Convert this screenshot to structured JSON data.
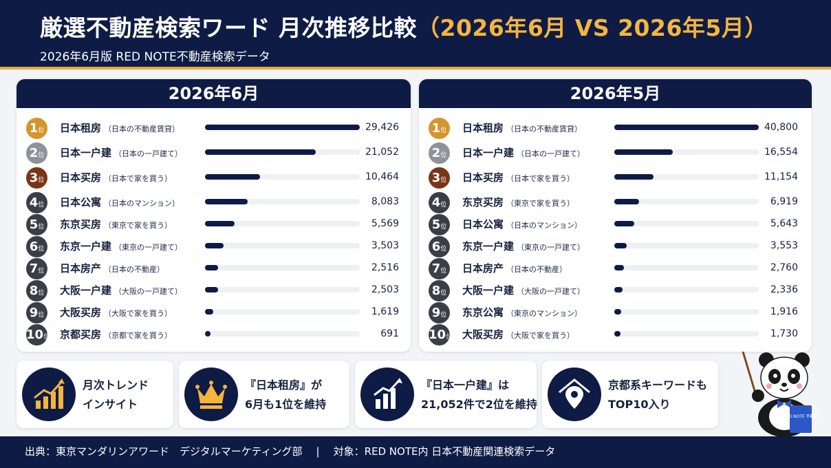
{
  "header": {
    "title_main": "厳選不動産検索ワード 月次推移比較",
    "title_accent": "（2026年6月 VS 2026年5月）",
    "subtitle": "2026年6月版 RED NOTE不動産検索データ"
  },
  "rank_suffix": "位",
  "colors": {
    "navy": "#0e1b45",
    "gold": "#d5952c",
    "silver": "#8f9299",
    "bronze": "#7a3518",
    "gray": "#3a3f47",
    "accent": "#f4b53f"
  },
  "chart_data": [
    {
      "type": "bar",
      "title": "2026年6月",
      "categories": [
        "日本租房",
        "日本一户建",
        "日本买房",
        "日本公寓",
        "东京买房",
        "东京一户建",
        "日本房产",
        "大阪一户建",
        "大阪买房",
        "京都买房"
      ],
      "notes": [
        "（日本の不動産賃貸）",
        "（日本の一戸建て）",
        "（日本で家を買う）",
        "（日本のマンション）",
        "（東京で家を買う）",
        "（東京の一戸建て）",
        "（日本の不動産）",
        "（大阪の一戸建て）",
        "（大阪で家を買う）",
        "（京都で家を買う）"
      ],
      "ranks": [
        "1",
        "2",
        "3",
        "4",
        "5",
        "6",
        "7",
        "8",
        "9",
        "10"
      ],
      "values": [
        29426,
        21052,
        10464,
        8083,
        5569,
        3503,
        2516,
        2503,
        1619,
        691
      ],
      "value_labels": [
        "29,426",
        "21,052",
        "10,464",
        "8,083",
        "5,569",
        "3,503",
        "2,516",
        "2,503",
        "1,619",
        "691"
      ]
    },
    {
      "type": "bar",
      "title": "2026年5月",
      "categories": [
        "日本租房",
        "日本一户建",
        "日本买房",
        "东京买房",
        "日本公寓",
        "东京一户建",
        "日本房产",
        "大阪一户建",
        "东京公寓",
        "大阪买房"
      ],
      "notes": [
        "（日本の不動産賃貸）",
        "（日本の一戸建て）",
        "（日本で家を買う）",
        "（東京で家を買う）",
        "（日本のマンション）",
        "（東京の一戸建て）",
        "（日本の不動産）",
        "（大阪の一戸建て）",
        "（東京のマンション）",
        "（大阪で家を買う）"
      ],
      "ranks": [
        "1",
        "2",
        "3",
        "4",
        "5",
        "6",
        "7",
        "8",
        "9",
        "10"
      ],
      "values": [
        40800,
        16554,
        11154,
        6919,
        5643,
        3553,
        2760,
        2336,
        1916,
        1730
      ],
      "value_labels": [
        "40,800",
        "16,554",
        "11,154",
        "6,919",
        "5,643",
        "3,553",
        "2,760",
        "2,336",
        "1,916",
        "1,730"
      ]
    }
  ],
  "insights": [
    {
      "icon": "trend-chart-icon",
      "line1": "月次トレンド",
      "line2": "インサイト"
    },
    {
      "icon": "crown-icon",
      "line1": "『日本租房』が",
      "line2": "6月も1位を維持"
    },
    {
      "icon": "bar-growth-icon",
      "line1": "『日本一户建』は",
      "line2": "21,052件で2位を維持"
    },
    {
      "icon": "location-home-icon",
      "line1": "京都系キーワードも",
      "line2": "TOP10入り"
    }
  ],
  "mascot": {
    "book_text": "RED NOTE 不動産"
  },
  "footer": {
    "source": "出典：東京マンダリンアワード　デジタルマーケティング部",
    "separator": "|",
    "target": "対象：RED NOTE内 日本不動産関連検索データ"
  }
}
